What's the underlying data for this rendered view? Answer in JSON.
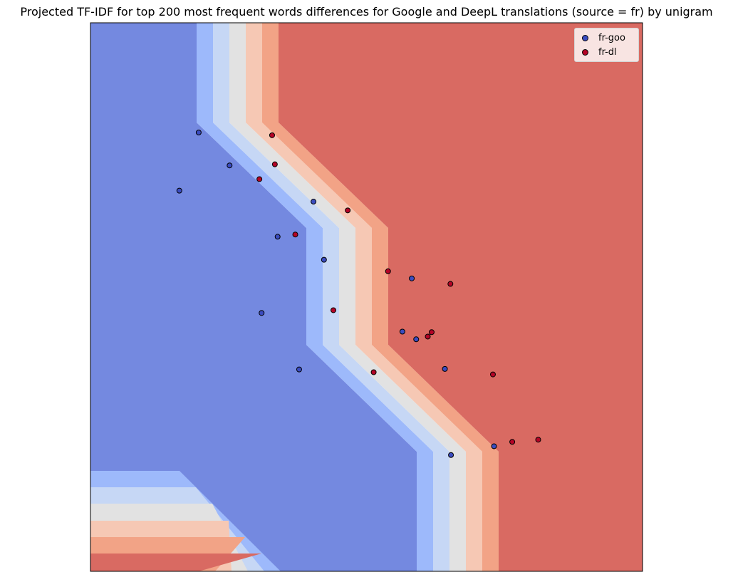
{
  "chart_data": {
    "type": "scatter",
    "title": "Projected TF-IDF for top 200 most frequent words differences for Google and DeepL translations (source = fr) by unigram",
    "xlabel": "",
    "ylabel": "",
    "xlim": [
      0,
      10
    ],
    "ylim": [
      0,
      10
    ],
    "x_ticks": [],
    "y_ticks": [],
    "grid": false,
    "legend_position": "top-right",
    "background": "decision-boundary contour (blue region = fr-goo, red region = fr-dl)",
    "colors": {
      "fr-goo": "#3b4cc0",
      "fr-dl": "#b40426",
      "region_blue": "#7489e0",
      "region_red": "#d96a62",
      "bands": [
        "#9db9fb",
        "#c6d7f5",
        "#e2e2e2",
        "#f6c8b4",
        "#f2a386"
      ]
    },
    "series": [
      {
        "name": "fr-goo",
        "color": "#3b4cc0",
        "points": [
          {
            "x": 1.96,
            "y": 8.0
          },
          {
            "x": 1.61,
            "y": 6.94
          },
          {
            "x": 2.52,
            "y": 7.4
          },
          {
            "x": 4.04,
            "y": 6.74
          },
          {
            "x": 3.39,
            "y": 6.1
          },
          {
            "x": 4.23,
            "y": 5.68
          },
          {
            "x": 3.1,
            "y": 4.71
          },
          {
            "x": 5.82,
            "y": 5.34
          },
          {
            "x": 5.65,
            "y": 4.37
          },
          {
            "x": 5.9,
            "y": 4.23
          },
          {
            "x": 3.78,
            "y": 3.68
          },
          {
            "x": 6.42,
            "y": 3.69
          },
          {
            "x": 6.53,
            "y": 2.12
          },
          {
            "x": 7.31,
            "y": 2.28
          }
        ]
      },
      {
        "name": "fr-dl",
        "color": "#b40426",
        "points": [
          {
            "x": 3.29,
            "y": 7.95
          },
          {
            "x": 3.34,
            "y": 7.42
          },
          {
            "x": 3.06,
            "y": 7.15
          },
          {
            "x": 4.66,
            "y": 6.58
          },
          {
            "x": 3.71,
            "y": 6.14
          },
          {
            "x": 5.39,
            "y": 5.47
          },
          {
            "x": 6.52,
            "y": 5.24
          },
          {
            "x": 4.4,
            "y": 4.76
          },
          {
            "x": 6.18,
            "y": 4.36
          },
          {
            "x": 6.11,
            "y": 4.28
          },
          {
            "x": 5.13,
            "y": 3.63
          },
          {
            "x": 7.29,
            "y": 3.59
          },
          {
            "x": 7.64,
            "y": 2.36
          },
          {
            "x": 8.11,
            "y": 2.4
          }
        ]
      }
    ]
  }
}
